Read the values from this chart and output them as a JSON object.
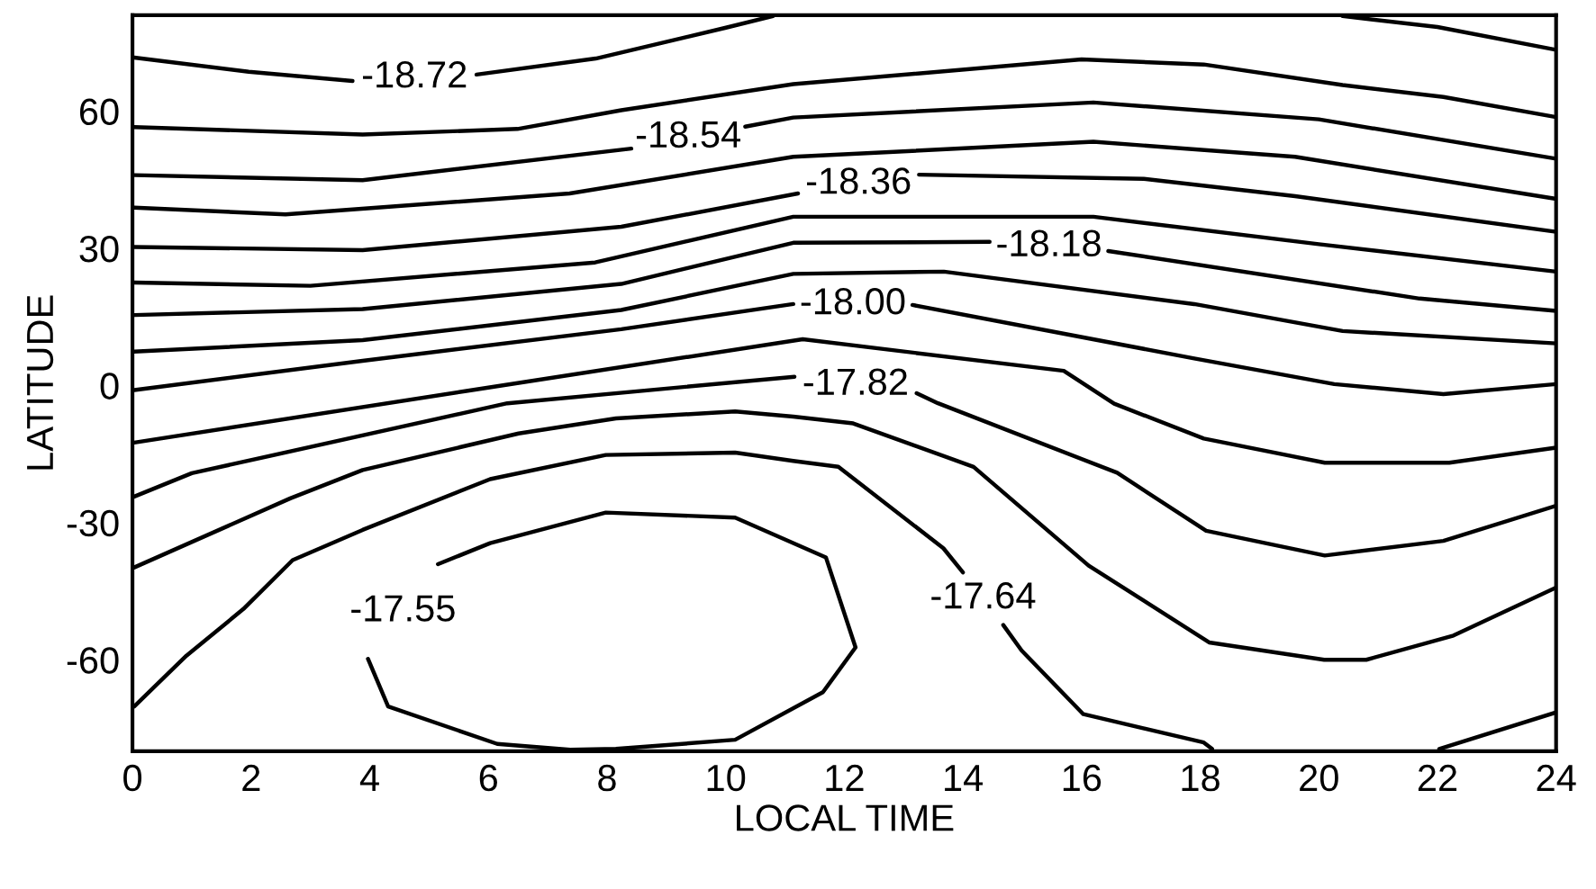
{
  "chart_data": {
    "type": "line",
    "xlabel": "LOCAL TIME",
    "ylabel": "LATITUDE",
    "xlim": [
      0,
      24
    ],
    "ylim": [
      -80,
      81
    ],
    "xticks": [
      0,
      2,
      4,
      6,
      8,
      10,
      12,
      14,
      16,
      18,
      20,
      22,
      24
    ],
    "yticks": [
      -60,
      -30,
      0,
      30,
      60
    ],
    "series": [
      {
        "name": "-18.72",
        "color": "#000000",
        "x": [
          0.03,
          1.96,
          3.71,
          4.75,
          5.8,
          7.81,
          9.99,
          10.8,
          15.5,
          20.4,
          22.0,
          24
        ],
        "values": [
          71.7,
          68.6,
          66.6,
          null,
          68.0,
          71.5,
          78.2,
          80.8,
          null,
          80.8,
          78.4,
          73.4
        ]
      },
      {
        "color": "#000000",
        "x": [
          0.03,
          3.88,
          6.49,
          8.24,
          11.14,
          16.0,
          18.06,
          20.4,
          22.1,
          24
        ],
        "values": [
          56.5,
          54.9,
          56.1,
          60.2,
          65.9,
          71.3,
          70.2,
          65.7,
          63.1,
          58.7
        ]
      },
      {
        "name": "-18.54",
        "color": "#000000",
        "x": [
          0.03,
          3.88,
          8.41,
          9.4,
          10.33,
          11.14,
          16.2,
          20.0,
          24
        ],
        "values": [
          46.0,
          44.9,
          51.8,
          null,
          56.6,
          58.6,
          61.9,
          58.2,
          49.6
        ]
      },
      {
        "color": "#000000",
        "x": [
          0.03,
          2.58,
          7.37,
          11.14,
          16.2,
          19.6,
          24
        ],
        "values": [
          38.9,
          37.4,
          42.0,
          50.0,
          53.3,
          50.0,
          40.8
        ]
      },
      {
        "name": "-18.36",
        "color": "#000000",
        "x": [
          0.03,
          3.88,
          8.24,
          11.22,
          12.3,
          13.26,
          17.05,
          19.6,
          24
        ],
        "values": [
          30.3,
          29.6,
          34.7,
          42.0,
          null,
          46.1,
          45.2,
          41.4,
          33.6
        ]
      },
      {
        "color": "#000000",
        "x": [
          0.03,
          3.0,
          7.8,
          11.14,
          16.2,
          20.0,
          24
        ],
        "values": [
          22.5,
          21.8,
          26.9,
          36.9,
          36.9,
          30.9,
          24.9
        ]
      },
      {
        "name": "-18.18",
        "color": "#000000",
        "x": [
          0.03,
          3.88,
          8.24,
          11.14,
          14.45,
          15.5,
          16.45,
          21.7,
          24
        ],
        "values": [
          15.4,
          16.7,
          22.2,
          31.2,
          31.4,
          null,
          29.4,
          19.0,
          16.3
        ]
      },
      {
        "color": "#000000",
        "x": [
          0.03,
          3.88,
          8.24,
          11.14,
          13.68,
          17.9,
          20.4,
          24
        ],
        "values": [
          7.4,
          9.9,
          16.5,
          24.4,
          24.9,
          17.8,
          11.9,
          9.2
        ]
      },
      {
        "name": "-18.00",
        "color": "#000000",
        "x": [
          0.03,
          3.88,
          8.24,
          11.14,
          12.2,
          13.15,
          17.9,
          20.26,
          22.1,
          24
        ],
        "values": [
          -1.0,
          5.4,
          12.3,
          17.8,
          null,
          17.6,
          5.9,
          0.3,
          -1.9,
          0.3
        ]
      },
      {
        "color": "#000000",
        "x": [
          0.03,
          5.63,
          11.3,
          15.7,
          16.55,
          18.06,
          20.1,
          22.2,
          24
        ],
        "values": [
          -12.5,
          -1.2,
          10.1,
          3.2,
          -4.0,
          -11.6,
          -16.9,
          -16.9,
          -13.6
        ]
      },
      {
        "name": "-17.82",
        "color": "#000000",
        "x": [
          0.03,
          1.0,
          6.32,
          11.16,
          12.2,
          13.22,
          13.58,
          16.6,
          18.1,
          20.1,
          22.1,
          24
        ],
        "values": [
          -24.3,
          -19.2,
          -3.9,
          1.9,
          null,
          -1.7,
          -3.9,
          -19.1,
          -31.8,
          -37.2,
          -34.0,
          -26.3
        ]
      },
      {
        "color": "#000000",
        "x": [
          0.03,
          2.66,
          3.88,
          6.51,
          8.15,
          10.16,
          11.14,
          12.15,
          14.18,
          16.12,
          18.15,
          20.09,
          20.8,
          22.27,
          24
        ],
        "values": [
          -39.8,
          -24.7,
          -18.5,
          -10.5,
          -7.2,
          -5.7,
          -6.8,
          -8.3,
          -17.8,
          -39.4,
          -56.2,
          -60.0,
          -60.0,
          -54.7,
          -44.2
        ]
      },
      {
        "name": "-17.64",
        "color": "#000000",
        "x": [
          0.03,
          0.91,
          1.87,
          2.7,
          3.88,
          6.03,
          7.98,
          10.16,
          11.14,
          11.9,
          13.67,
          14.0,
          14.3,
          14.68,
          14.99,
          16.03,
          18.06,
          18.2,
          20.0,
          22.03,
          24
        ],
        "values": [
          -70.2,
          -59.1,
          -48.9,
          -38.2,
          -31.6,
          -20.5,
          -15.2,
          -14.7,
          -16.5,
          -17.8,
          -35.6,
          -40.9,
          null,
          -52.4,
          -58.0,
          -71.9,
          -78.1,
          -79.5,
          null,
          -79.5,
          -71.5
        ]
      },
      {
        "name": "-17.55",
        "color": "#000000",
        "x": [
          5.15,
          6.03,
          7.98,
          10.16,
          11.69,
          12.19,
          11.64,
          10.16,
          8.15,
          7.38,
          6.15,
          4.31,
          3.97
        ],
        "values": [
          -39.1,
          -34.5,
          -27.8,
          -28.9,
          -37.6,
          -57.3,
          -67.1,
          -77.5,
          -79.5,
          -79.7,
          -78.4,
          -70.2,
          -59.8
        ]
      }
    ]
  }
}
